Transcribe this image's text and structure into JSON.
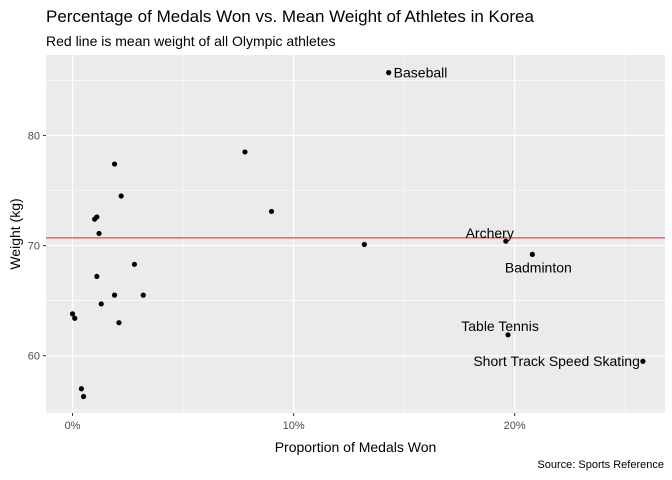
{
  "header": {
    "title": "Percentage of Medals Won vs. Mean Weight of Athletes in Korea",
    "subtitle": "Red line is mean weight of all Olympic athletes",
    "caption": "Source: Sports Reference"
  },
  "colors": {
    "panel": "#ebebeb",
    "grid": "#ffffff",
    "point": "#000000",
    "reference_line": "#e8202a",
    "tick_text": "#4d4d4d"
  },
  "chart_data": {
    "type": "scatter",
    "xlabel": "Proportion of Medals Won",
    "ylabel": "Weight (kg)",
    "xlim": [
      -0.012,
      0.268
    ],
    "ylim": [
      54.8,
      87.3
    ],
    "x_ticks": [
      0,
      0.1,
      0.2
    ],
    "x_tick_labels": [
      "0%",
      "10%",
      "20%"
    ],
    "y_ticks": [
      60,
      70,
      80
    ],
    "y_tick_labels": [
      "60",
      "70",
      "80"
    ],
    "grid": true,
    "reference_line": {
      "y": 70.7
    },
    "points": [
      {
        "x": 0.143,
        "y": 85.7,
        "label": "Baseball"
      },
      {
        "x": 0.196,
        "y": 70.4,
        "label": "Archery"
      },
      {
        "x": 0.208,
        "y": 69.2,
        "label": "Badminton"
      },
      {
        "x": 0.197,
        "y": 61.9,
        "label": "Table Tennis"
      },
      {
        "x": 0.258,
        "y": 59.5,
        "label": "Short Track Speed Skating"
      },
      {
        "x": 0.078,
        "y": 78.5
      },
      {
        "x": 0.09,
        "y": 73.1
      },
      {
        "x": 0.132,
        "y": 70.1
      },
      {
        "x": 0.019,
        "y": 77.4
      },
      {
        "x": 0.022,
        "y": 74.5
      },
      {
        "x": 0.01,
        "y": 72.4
      },
      {
        "x": 0.011,
        "y": 72.6
      },
      {
        "x": 0.012,
        "y": 71.1
      },
      {
        "x": 0.028,
        "y": 68.3
      },
      {
        "x": 0.011,
        "y": 67.2
      },
      {
        "x": 0.019,
        "y": 65.5
      },
      {
        "x": 0.032,
        "y": 65.5
      },
      {
        "x": 0.013,
        "y": 64.7
      },
      {
        "x": 0.021,
        "y": 63.0
      },
      {
        "x": 0.0,
        "y": 63.8
      },
      {
        "x": 0.001,
        "y": 63.4
      },
      {
        "x": 0.004,
        "y": 57.0
      },
      {
        "x": 0.005,
        "y": 56.3
      }
    ]
  }
}
